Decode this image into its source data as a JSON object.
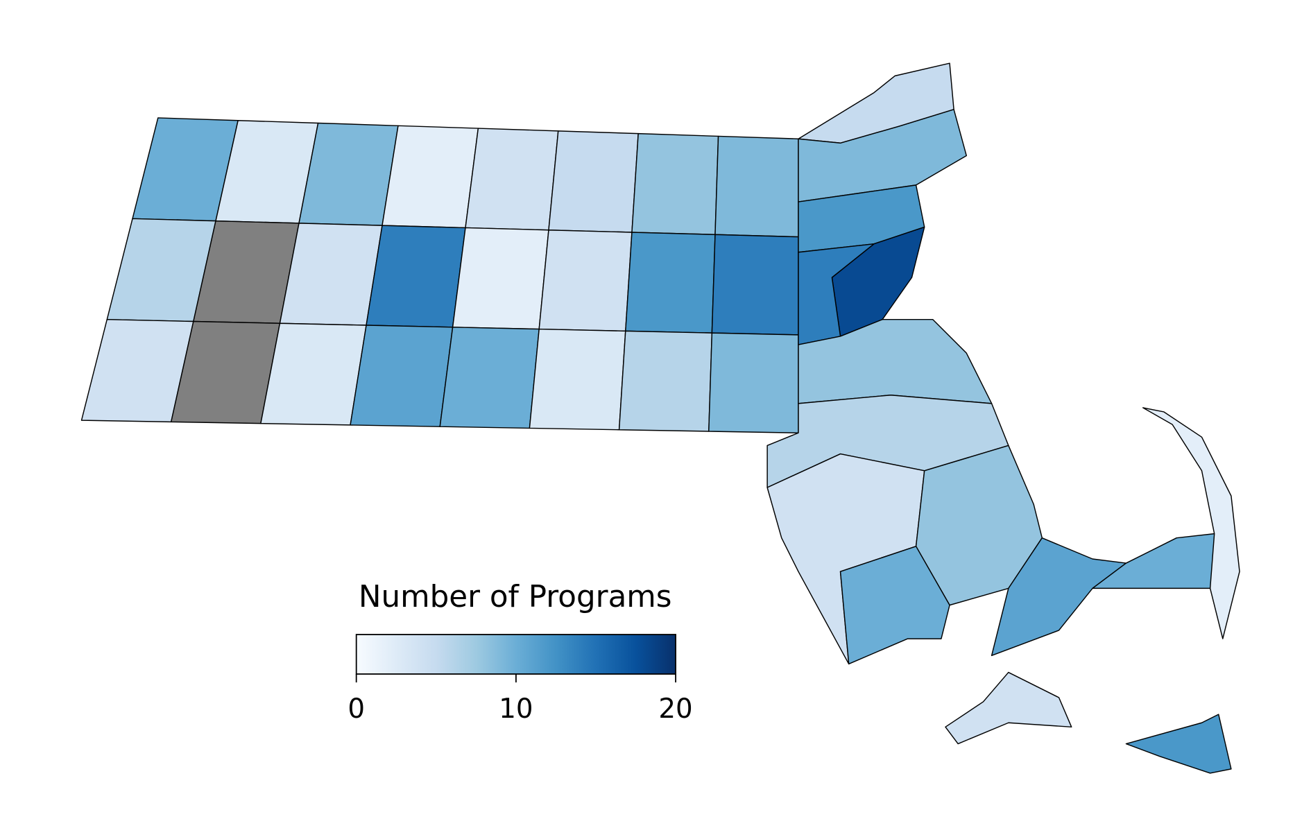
{
  "map": {
    "legend": {
      "title": "Number of Programs",
      "range": [
        0,
        20
      ],
      "ticks": [
        0,
        10,
        20
      ]
    },
    "colormap": [
      "#f7fbff",
      "#deebf7",
      "#c6dbef",
      "#9ecae1",
      "#6baed6",
      "#4292c6",
      "#2171b5",
      "#08519c",
      "#08306b"
    ],
    "no_data_color": "#808080",
    "regions": {
      "values": [
        10,
        3,
        9,
        2,
        4,
        5,
        8,
        9,
        6,
        null,
        4,
        14,
        2,
        4,
        12,
        14,
        4,
        null,
        3,
        11,
        10,
        3,
        6,
        9,
        5,
        9,
        12,
        18,
        14,
        8,
        6,
        4,
        8,
        10,
        11,
        10,
        2,
        4,
        12
      ]
    }
  }
}
